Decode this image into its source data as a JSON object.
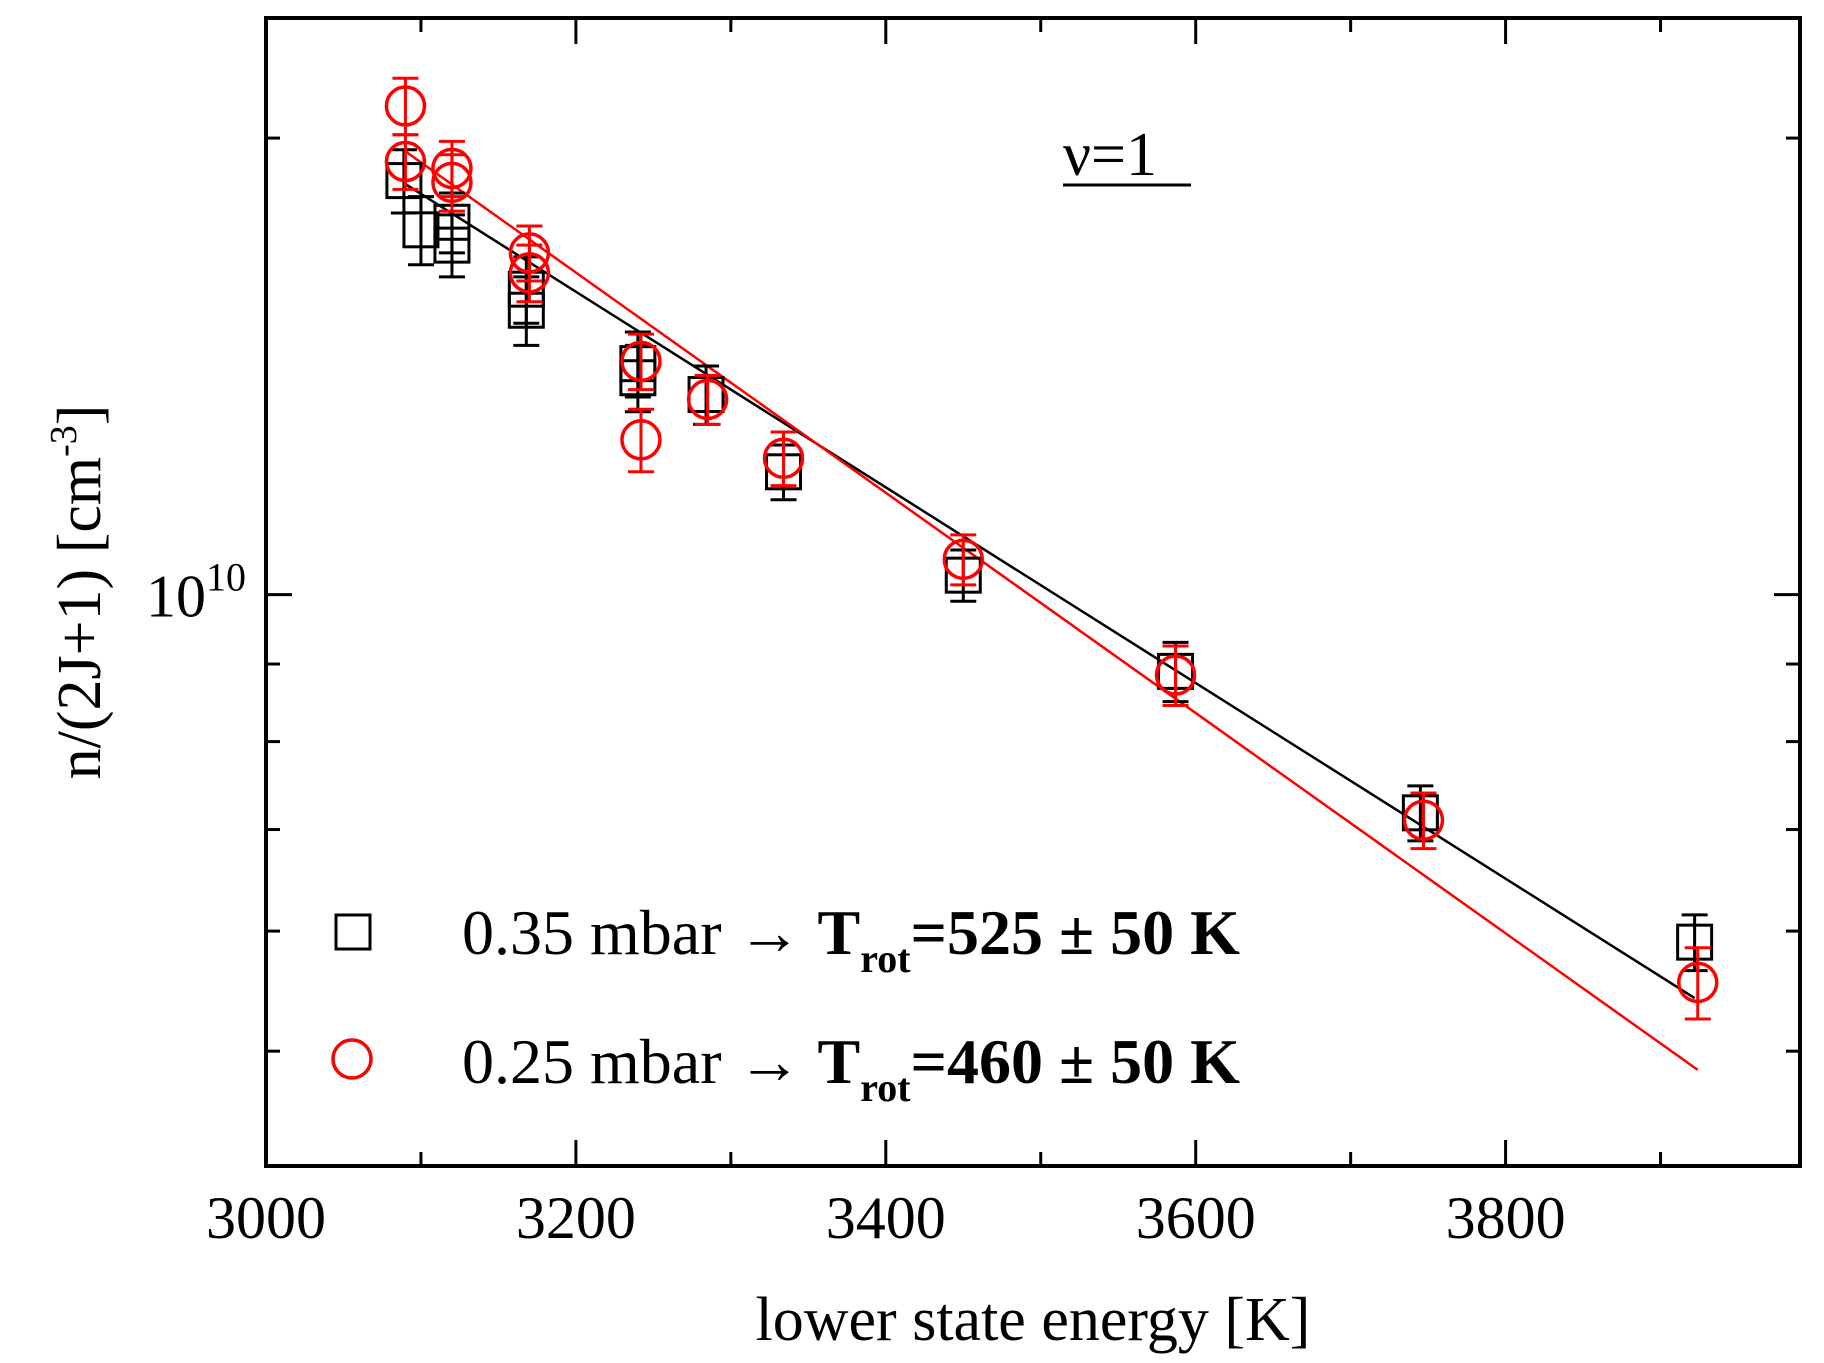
{
  "chart_data": {
    "type": "scatter",
    "xlabel": "lower state energy [K]",
    "ylabel": "n/(2J+1) [cm-3]",
    "ylabel_parts": {
      "main": "n/(2J+1) [cm",
      "sup": "-3",
      "close": "]"
    },
    "xlim": [
      3000,
      3990
    ],
    "ylim": [
      4200000000.0,
      24000000000.0
    ],
    "yscale": "log",
    "x_ticks": [
      {
        "value": 3000,
        "label": "3000"
      },
      {
        "value": 3200,
        "label": "3200"
      },
      {
        "value": 3400,
        "label": "3400"
      },
      {
        "value": 3600,
        "label": "3600"
      },
      {
        "value": 3800,
        "label": "3800"
      }
    ],
    "y_major_tick": {
      "value": 10000000000.0,
      "base": "10",
      "exp": "10"
    },
    "annotation": "ν=1",
    "series": [
      {
        "name": "0.35 mbar",
        "color": "#000000",
        "marker": "square",
        "legend": {
          "pre": "0.35 mbar → ",
          "t": "T",
          "sub": "rot",
          "post": "=525 ± 50 K"
        },
        "points": [
          {
            "x": 3089,
            "y": 18750000000.0,
            "err": 900000000.0
          },
          {
            "x": 3100,
            "y": 17400000000.0,
            "err": 900000000.0
          },
          {
            "x": 3120,
            "y": 17600000000.0,
            "err": 800000000.0
          },
          {
            "x": 3120,
            "y": 17000000000.0,
            "err": 800000000.0
          },
          {
            "x": 3168,
            "y": 15900000000.0,
            "err": 800000000.0
          },
          {
            "x": 3168,
            "y": 15400000000.0,
            "err": 800000000.0
          },
          {
            "x": 3240,
            "y": 14200000000.0,
            "err": 700000000.0
          },
          {
            "x": 3240,
            "y": 13900000000.0,
            "err": 700000000.0
          },
          {
            "x": 3284,
            "y": 13550000000.0,
            "err": 600000000.0
          },
          {
            "x": 3334,
            "y": 12050000000.0,
            "err": 500000000.0
          },
          {
            "x": 3450,
            "y": 10300000000.0,
            "err": 400000000.0
          },
          {
            "x": 3587,
            "y": 8900000000.0,
            "err": 400000000.0
          },
          {
            "x": 3745,
            "y": 7180000000.0,
            "err": 300000000.0
          },
          {
            "x": 3922,
            "y": 5900000000.0,
            "err": 250000000.0
          }
        ],
        "fit": {
          "x": [
            3090,
            3922
          ],
          "y": [
            18650000000.0,
            5420000000.0
          ]
        }
      },
      {
        "name": "0.25 mbar",
        "color": "#ff0000",
        "marker": "circle",
        "legend": {
          "pre": "0.25 mbar → ",
          "t": "T",
          "sub": "rot",
          "post": "=460 ± 50 K"
        },
        "points": [
          {
            "x": 3090,
            "y": 21000000000.0,
            "err": 900000000.0
          },
          {
            "x": 3090,
            "y": 19300000000.0,
            "err": 800000000.0
          },
          {
            "x": 3120,
            "y": 19100000000.0,
            "err": 800000000.0
          },
          {
            "x": 3120,
            "y": 18700000000.0,
            "err": 800000000.0
          },
          {
            "x": 3170,
            "y": 16800000000.0,
            "err": 700000000.0
          },
          {
            "x": 3170,
            "y": 16300000000.0,
            "err": 700000000.0
          },
          {
            "x": 3242,
            "y": 14250000000.0,
            "err": 600000000.0
          },
          {
            "x": 3242,
            "y": 12650000000.0,
            "err": 600000000.0
          },
          {
            "x": 3285,
            "y": 13450000000.0,
            "err": 500000000.0
          },
          {
            "x": 3334,
            "y": 12300000000.0,
            "err": 500000000.0
          },
          {
            "x": 3450,
            "y": 10550000000.0,
            "err": 400000000.0
          },
          {
            "x": 3587,
            "y": 8850000000.0,
            "err": 400000000.0
          },
          {
            "x": 3747,
            "y": 7100000000.0,
            "err": 300000000.0
          },
          {
            "x": 3924,
            "y": 5550000000.0,
            "err": 300000000.0
          }
        ],
        "fit": {
          "x": [
            3090,
            3924
          ],
          "y": [
            19600000000.0,
            4860000000.0
          ]
        }
      }
    ]
  }
}
